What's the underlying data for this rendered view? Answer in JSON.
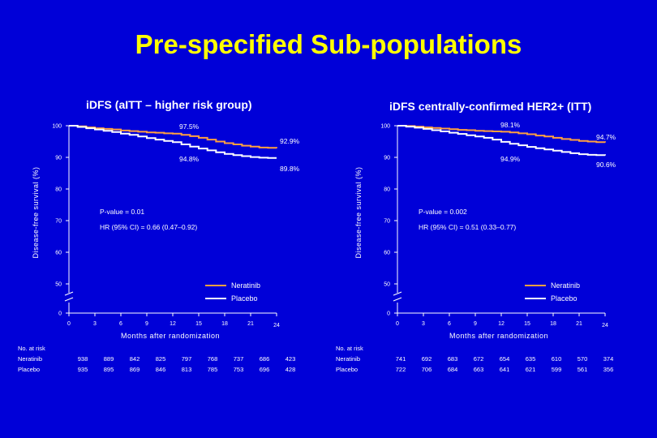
{
  "title": "Pre-specified Sub-populations",
  "colors": {
    "background": "#0000d8",
    "title": "#ffff00",
    "neratinib": "#ffa040",
    "placebo": "#ffffff"
  },
  "chart_data": [
    {
      "type": "line",
      "title": "iDFS (aITT – higher risk group)",
      "xlabel": "Months after randomization",
      "ylabel": "Disease-free survival (%)",
      "x_ticks": [
        0,
        3,
        6,
        9,
        12,
        15,
        18,
        21,
        24
      ],
      "y_ticks": [
        0,
        50,
        60,
        70,
        80,
        90,
        100
      ],
      "xlim": [
        0,
        24
      ],
      "axis_break": true,
      "annotations": {
        "neratinib_12m": "97.5%",
        "placebo_12m": "94.8%",
        "neratinib_24m": "92.9%",
        "placebo_24m": "89.8%",
        "p_value": "P-value = 0.01",
        "hr": "HR (95% CI) = 0.66 (0.47–0.92)"
      },
      "series": [
        {
          "name": "Neratinib",
          "x": [
            0,
            1,
            2,
            3,
            4,
            5,
            6,
            7,
            8,
            9,
            10,
            11,
            12,
            13,
            14,
            15,
            16,
            17,
            18,
            19,
            20,
            21,
            22,
            23,
            24
          ],
          "y": [
            100,
            99.8,
            99.5,
            99.2,
            99.0,
            98.8,
            98.5,
            98.3,
            98.1,
            97.9,
            97.8,
            97.6,
            97.5,
            97.1,
            96.7,
            96.2,
            95.6,
            95.0,
            94.5,
            94.1,
            93.7,
            93.4,
            93.1,
            93.0,
            92.9
          ]
        },
        {
          "name": "Placebo",
          "x": [
            0,
            1,
            2,
            3,
            4,
            5,
            6,
            7,
            8,
            9,
            10,
            11,
            12,
            13,
            14,
            15,
            16,
            17,
            18,
            19,
            20,
            21,
            22,
            23,
            24
          ],
          "y": [
            100,
            99.6,
            99.2,
            98.8,
            98.4,
            98.0,
            97.5,
            97.1,
            96.6,
            96.1,
            95.6,
            95.2,
            94.8,
            94.1,
            93.4,
            92.8,
            92.2,
            91.6,
            91.1,
            90.7,
            90.4,
            90.1,
            89.9,
            89.8,
            89.8
          ]
        }
      ],
      "legend": [
        "Neratinib",
        "Placebo"
      ],
      "risk_table": {
        "header": "No. at risk",
        "rows": [
          {
            "label": "Neratinib",
            "values": [
              "938",
              "889",
              "842",
              "825",
              "797",
              "768",
              "737",
              "686",
              "423"
            ]
          },
          {
            "label": "Placebo",
            "values": [
              "935",
              "895",
              "869",
              "846",
              "813",
              "785",
              "753",
              "696",
              "428"
            ]
          }
        ]
      }
    },
    {
      "type": "line",
      "title": "iDFS centrally-confirmed HER2+ (ITT)",
      "xlabel": "Months after randomization",
      "ylabel": "Disease-free survival (%)",
      "x_ticks": [
        0,
        3,
        6,
        9,
        12,
        15,
        18,
        21,
        24
      ],
      "y_ticks": [
        0,
        50,
        60,
        70,
        80,
        90,
        100
      ],
      "xlim": [
        0,
        24
      ],
      "axis_break": true,
      "annotations": {
        "neratinib_12m": "98.1%",
        "placebo_12m": "94.9%",
        "neratinib_24m": "94.7%",
        "placebo_24m": "90.6%",
        "p_value": "P-value = 0.002",
        "hr": "HR (95% CI) = 0.51 (0.33–0.77)"
      },
      "series": [
        {
          "name": "Neratinib",
          "x": [
            0,
            1,
            2,
            3,
            4,
            5,
            6,
            7,
            8,
            9,
            10,
            11,
            12,
            13,
            14,
            15,
            16,
            17,
            18,
            19,
            20,
            21,
            22,
            23,
            24
          ],
          "y": [
            100,
            99.9,
            99.7,
            99.5,
            99.3,
            99.1,
            98.9,
            98.7,
            98.6,
            98.4,
            98.3,
            98.2,
            98.1,
            97.9,
            97.6,
            97.3,
            96.9,
            96.6,
            96.2,
            95.8,
            95.5,
            95.2,
            95.0,
            94.8,
            94.7
          ]
        },
        {
          "name": "Placebo",
          "x": [
            0,
            1,
            2,
            3,
            4,
            5,
            6,
            7,
            8,
            9,
            10,
            11,
            12,
            13,
            14,
            15,
            16,
            17,
            18,
            19,
            20,
            21,
            22,
            23,
            24
          ],
          "y": [
            100,
            99.7,
            99.4,
            99.0,
            98.6,
            98.2,
            97.8,
            97.4,
            97.0,
            96.6,
            96.2,
            95.6,
            94.9,
            94.3,
            93.8,
            93.3,
            92.9,
            92.5,
            92.1,
            91.7,
            91.3,
            91.0,
            90.8,
            90.7,
            90.6
          ]
        }
      ],
      "legend": [
        "Neratinib",
        "Placebo"
      ],
      "risk_table": {
        "header": "No. at risk",
        "rows": [
          {
            "label": "Neratinib",
            "values": [
              "741",
              "692",
              "683",
              "672",
              "654",
              "635",
              "610",
              "570",
              "374"
            ]
          },
          {
            "label": "Placebo",
            "values": [
              "722",
              "706",
              "684",
              "663",
              "641",
              "621",
              "599",
              "561",
              "356"
            ]
          }
        ]
      }
    }
  ]
}
